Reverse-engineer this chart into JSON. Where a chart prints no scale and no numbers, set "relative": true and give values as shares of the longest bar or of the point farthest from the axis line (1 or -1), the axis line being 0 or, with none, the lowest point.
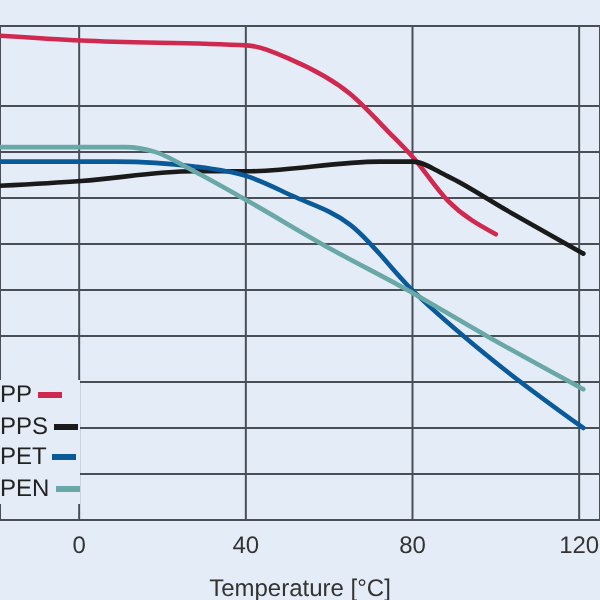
{
  "chart_data": {
    "type": "line",
    "xlabel": "Temperature [°C]",
    "relative": true,
    "xlim": [
      -19,
      125
    ],
    "xticks": [
      0,
      40,
      80,
      120
    ],
    "grid": true,
    "legend": "bottom left",
    "marker": "none",
    "line_style": "solid",
    "series": [
      {
        "name": "PP",
        "color": "#d0294f",
        "x": [
          -19,
          0.5,
          40.2,
          51,
          65,
          74.4,
          80,
          88.4,
          100
        ],
        "values": [
          1.0,
          0.99,
          0.98,
          0.95,
          0.88,
          0.8,
          0.75,
          0.66,
          0.59
        ]
      },
      {
        "name": "PPS",
        "color": "#1a1a1a",
        "x": [
          -19,
          0.5,
          27.6,
          40.2,
          72,
          80,
          88.4,
          102.5,
          121
        ],
        "values": [
          0.69,
          0.7,
          0.72,
          0.72,
          0.74,
          0.74,
          0.71,
          0.64,
          0.55
        ]
      },
      {
        "name": "PET",
        "color": "#0a5a9a",
        "x": [
          -19,
          8.9,
          27.6,
          40.2,
          51,
          65,
          80.5,
          97.8,
          121
        ],
        "values": [
          0.74,
          0.74,
          0.73,
          0.71,
          0.67,
          0.61,
          0.47,
          0.34,
          0.19
        ]
      },
      {
        "name": "PEN",
        "color": "#6aa8a8",
        "x": [
          -19,
          11.2,
          18.2,
          27.6,
          40.2,
          60.3,
          77.7,
          97.8,
          121
        ],
        "values": [
          0.77,
          0.77,
          0.76,
          0.72,
          0.66,
          0.56,
          0.48,
          0.38,
          0.27
        ]
      }
    ]
  }
}
